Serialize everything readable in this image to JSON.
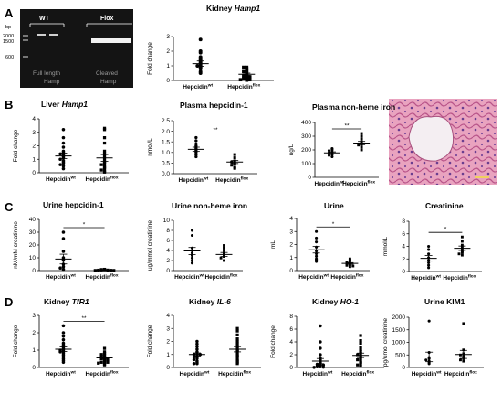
{
  "panels": {
    "A": "A",
    "B": "B",
    "C": "C",
    "D": "D"
  },
  "gel": {
    "bp_label": "bp",
    "markers": [
      "2000",
      "1500",
      "600"
    ],
    "wt_label": "WT",
    "flox_label": "Flox",
    "full_length_line1": "Full length",
    "full_length_line2": "Hamp",
    "cleaved_line1": "Cleaved",
    "cleaved_line2": "Hamp"
  },
  "histology": {
    "description": "kidney tissue section"
  },
  "colors": {
    "data": "#000000",
    "stroke": "#000000"
  },
  "chart_data": [
    {
      "id": "kidney-hamp1",
      "type": "scatter",
      "title_plain": "Kidney ",
      "title_italic": "Hamp1",
      "ylabel": "Fold change",
      "ylim": [
        0,
        3
      ],
      "yticks": [
        "0",
        "1",
        "2",
        "3"
      ],
      "categories": [
        {
          "base": "Hepcidin",
          "sup": "wt"
        },
        {
          "base": "Hepcidin",
          "sup": "flox"
        }
      ],
      "series": [
        {
          "values": [
            2.8,
            2.0,
            1.9,
            1.6,
            1.5,
            1.4,
            1.3,
            1.2,
            1.1,
            1.0,
            1.0,
            0.9,
            0.8,
            0.6,
            0.5
          ],
          "mean": 1.15,
          "sem": 0.18,
          "marker": "circle"
        },
        {
          "values": [
            0.9,
            0.9,
            0.8,
            0.7,
            0.6,
            0.6,
            0.5,
            0.4,
            0.35,
            0.3,
            0.25,
            0.2,
            0.15,
            0.1,
            0.05,
            0.05,
            0.02
          ],
          "mean": 0.42,
          "sem": 0.08,
          "marker": "square"
        }
      ],
      "significance": ""
    },
    {
      "id": "liver-hamp1",
      "type": "scatter",
      "title_plain": "Liver ",
      "title_italic": "Hamp1",
      "ylabel": "Fold change",
      "ylim": [
        0,
        4
      ],
      "yticks": [
        "0",
        "1",
        "2",
        "3",
        "4"
      ],
      "categories": [
        {
          "base": "Hepcidin",
          "sup": "wt"
        },
        {
          "base": "Hepcidin",
          "sup": "flox"
        }
      ],
      "series": [
        {
          "values": [
            3.2,
            2.6,
            2.2,
            1.9,
            1.6,
            1.5,
            1.4,
            1.3,
            1.2,
            1.1,
            1.0,
            0.9,
            0.8,
            0.7,
            0.6,
            0.5,
            0.3
          ],
          "mean": 1.25,
          "sem": 0.2,
          "marker": "circle"
        },
        {
          "values": [
            3.3,
            3.2,
            2.6,
            2.2,
            1.6,
            1.4,
            1.2,
            1.0,
            0.8,
            0.7,
            0.6,
            0.5,
            0.4,
            0.3,
            0.2,
            0.1,
            0.05
          ],
          "mean": 1.1,
          "sem": 0.25,
          "marker": "square"
        }
      ],
      "significance": ""
    },
    {
      "id": "plasma-hepcidin",
      "type": "scatter",
      "title_plain": "Plasma hepcidin-1",
      "title_italic": "",
      "ylabel": "nmol/L",
      "ylim": [
        0,
        2.5
      ],
      "yticks": [
        "0.0",
        "0.5",
        "1.0",
        "1.5",
        "2.0",
        "2.5"
      ],
      "categories": [
        {
          "base": "Hepcidin",
          "sup": "wt"
        },
        {
          "base": "Hepcidin",
          "sup": "flox"
        }
      ],
      "series": [
        {
          "values": [
            1.7,
            1.55,
            1.4,
            1.3,
            1.2,
            1.1,
            1.0,
            0.9,
            0.8
          ],
          "mean": 1.15,
          "sem": 0.1,
          "marker": "circle"
        },
        {
          "values": [
            0.9,
            0.75,
            0.6,
            0.55,
            0.5,
            0.45,
            0.4,
            0.3,
            0.25
          ],
          "mean": 0.55,
          "sem": 0.07,
          "marker": "square"
        }
      ],
      "significance": "**"
    },
    {
      "id": "plasma-iron",
      "type": "scatter",
      "title_plain": "Plasma non-heme iron",
      "title_italic": "",
      "ylabel": "ug/L",
      "ylim": [
        0,
        400
      ],
      "yticks": [
        "0",
        "100",
        "200",
        "300",
        "400"
      ],
      "categories": [
        {
          "base": "Hepcidin",
          "sup": "wt"
        },
        {
          "base": "Hepcidin",
          "sup": "flox"
        }
      ],
      "series": [
        {
          "values": [
            210,
            200,
            195,
            185,
            180,
            170,
            165,
            160,
            150
          ],
          "mean": 178,
          "sem": 8,
          "marker": "circle"
        },
        {
          "values": [
            320,
            300,
            280,
            260,
            250,
            240,
            235,
            220,
            200
          ],
          "mean": 250,
          "sem": 12,
          "marker": "square"
        }
      ],
      "significance": "**"
    },
    {
      "id": "urine-hepcidin",
      "type": "scatter",
      "title_plain": "Urine hepcidin-1",
      "title_italic": "",
      "ylabel": "nM/mM creatinine",
      "ylim": [
        0,
        40
      ],
      "yticks": [
        "0",
        "10",
        "20",
        "30",
        "40"
      ],
      "categories": [
        {
          "base": "Hepcidin",
          "sup": "wt"
        },
        {
          "base": "Hepcidin",
          "sup": "flox"
        }
      ],
      "series": [
        {
          "values": [
            30,
            25,
            15,
            10,
            8,
            5,
            3,
            2,
            1
          ],
          "mean": 9,
          "sem": 3.8,
          "marker": "circle"
        },
        {
          "values": [
            1.0,
            0.8,
            0.6,
            0.5,
            0.4,
            0.3,
            0.2,
            0.1,
            0.1
          ],
          "mean": 0.4,
          "sem": 0.1,
          "marker": "square"
        }
      ],
      "significance": "*"
    },
    {
      "id": "urine-iron",
      "type": "scatter",
      "title_plain": "Urine non-heme iron",
      "title_italic": "",
      "ylabel": "ug/mmol creatinine",
      "ylim": [
        0,
        10
      ],
      "yticks": [
        "0",
        "2",
        "4",
        "6",
        "8",
        "10"
      ],
      "categories": [
        {
          "base": "Hepcidin",
          "sup": "wt"
        },
        {
          "base": "Hepcidin",
          "sup": "flox"
        }
      ],
      "series": [
        {
          "values": [
            8,
            7,
            4.5,
            4,
            3.5,
            3,
            2.5,
            2,
            1.5
          ],
          "mean": 3.9,
          "sem": 0.7,
          "marker": "circle"
        },
        {
          "values": [
            5,
            4.5,
            4,
            3.5,
            3.2,
            3,
            2.8,
            2.5,
            2
          ],
          "mean": 3.2,
          "sem": 0.4,
          "marker": "square"
        }
      ],
      "significance": ""
    },
    {
      "id": "urine-volume",
      "type": "scatter",
      "title_plain": "Urine",
      "title_italic": "",
      "ylabel": "mL",
      "ylim": [
        0,
        4
      ],
      "yticks": [
        "0",
        "1",
        "2",
        "3",
        "4"
      ],
      "categories": [
        {
          "base": "Hepcidin",
          "sup": "wt"
        },
        {
          "base": "Hepcidin",
          "sup": "flox"
        }
      ],
      "series": [
        {
          "values": [
            3.0,
            2.5,
            2.2,
            1.8,
            1.5,
            1.3,
            1.1,
            0.9,
            0.8,
            0.7
          ],
          "mean": 1.6,
          "sem": 0.25,
          "marker": "circle"
        },
        {
          "values": [
            0.9,
            0.8,
            0.7,
            0.6,
            0.55,
            0.5,
            0.45,
            0.4,
            0.35,
            0.3
          ],
          "mean": 0.55,
          "sem": 0.06,
          "marker": "square"
        }
      ],
      "significance": "*"
    },
    {
      "id": "creatinine",
      "type": "scatter",
      "title_plain": "Creatinine",
      "title_italic": "",
      "ylabel": "mmol/L",
      "ylim": [
        0,
        8
      ],
      "yticks": [
        "0",
        "2",
        "4",
        "6",
        "8"
      ],
      "categories": [
        {
          "base": "Hepcidin",
          "sup": "wt"
        },
        {
          "base": "Hepcidin",
          "sup": "flox"
        }
      ],
      "series": [
        {
          "values": [
            4.0,
            3.5,
            2.8,
            2.2,
            1.8,
            1.4,
            1.0,
            0.6
          ],
          "mean": 2.1,
          "sem": 0.45,
          "marker": "circle"
        },
        {
          "values": [
            5.5,
            4.8,
            4.2,
            3.9,
            3.5,
            3.2,
            3.0,
            2.8,
            2.6
          ],
          "mean": 3.7,
          "sem": 0.35,
          "marker": "square"
        }
      ],
      "significance": "*"
    },
    {
      "id": "kidney-tfr1",
      "type": "scatter",
      "title_plain": "Kidney ",
      "title_italic": "TfR1",
      "ylabel": "Fold change",
      "ylim": [
        0,
        3
      ],
      "yticks": [
        "0",
        "1",
        "2",
        "3"
      ],
      "categories": [
        {
          "base": "Hepcidin",
          "sup": "wt"
        },
        {
          "base": "Hepcidin",
          "sup": "flox"
        }
      ],
      "series": [
        {
          "values": [
            2.4,
            2.0,
            1.8,
            1.6,
            1.4,
            1.3,
            1.2,
            1.1,
            1.0,
            1.0,
            0.9,
            0.9,
            0.8,
            0.7,
            0.6,
            0.5,
            0.4,
            0.3
          ],
          "mean": 1.05,
          "sem": 0.13,
          "marker": "circle"
        },
        {
          "values": [
            1.1,
            0.9,
            0.8,
            0.75,
            0.7,
            0.65,
            0.6,
            0.55,
            0.5,
            0.5,
            0.45,
            0.4,
            0.35,
            0.3,
            0.3,
            0.25,
            0.2,
            0.15
          ],
          "mean": 0.55,
          "sem": 0.06,
          "marker": "square"
        }
      ],
      "significance": "**"
    },
    {
      "id": "kidney-il6",
      "type": "scatter",
      "title_plain": "Kidney ",
      "title_italic": "IL-6",
      "ylabel": "Fold change",
      "ylim": [
        0,
        4
      ],
      "yticks": [
        "0",
        "1",
        "2",
        "3",
        "4"
      ],
      "categories": [
        {
          "base": "Hepcidin",
          "sup": "wt"
        },
        {
          "base": "Hepcidin",
          "sup": "flox"
        }
      ],
      "series": [
        {
          "values": [
            2.0,
            1.8,
            1.6,
            1.4,
            1.2,
            1.1,
            1.0,
            1.0,
            0.9,
            0.8,
            0.8,
            0.7,
            0.6,
            0.5,
            0.4,
            0.3,
            0.3
          ],
          "mean": 1.0,
          "sem": 0.12,
          "marker": "circle"
        },
        {
          "values": [
            3.0,
            2.8,
            2.5,
            2.2,
            2.0,
            1.8,
            1.6,
            1.4,
            1.3,
            1.2,
            1.0,
            0.9,
            0.8,
            0.6,
            0.5,
            0.4,
            0.3
          ],
          "mean": 1.4,
          "sem": 0.2,
          "marker": "square"
        }
      ],
      "significance": ""
    },
    {
      "id": "kidney-ho1",
      "type": "scatter",
      "title_plain": "Kidney ",
      "title_italic": "HO-1",
      "ylabel": "Fold change",
      "ylim": [
        0,
        8
      ],
      "yticks": [
        "0",
        "2",
        "4",
        "6",
        "8"
      ],
      "categories": [
        {
          "base": "Hepcidin",
          "sup": "wt"
        },
        {
          "base": "Hepcidin",
          "sup": "flox"
        }
      ],
      "series": [
        {
          "values": [
            6.5,
            4.0,
            3.0,
            2.0,
            1.5,
            1.2,
            1.0,
            0.8,
            0.6,
            0.5,
            0.4,
            0.3,
            0.2,
            0.1,
            0.1,
            0.05,
            0.02
          ],
          "mean": 1.0,
          "sem": 0.4,
          "marker": "circle"
        },
        {
          "values": [
            5.0,
            4.2,
            3.8,
            3.2,
            2.8,
            2.5,
            2.2,
            2.0,
            1.8,
            1.6,
            1.4,
            1.2,
            1.0,
            0.8,
            0.6,
            0.4,
            0.2
          ],
          "mean": 1.9,
          "sem": 0.35,
          "marker": "square"
        }
      ],
      "significance": ""
    },
    {
      "id": "urine-kim1",
      "type": "scatter",
      "title_plain": "Urine KIM1",
      "title_italic": "",
      "ylabel": "pg/umol creatinine",
      "ylim": [
        0,
        2000
      ],
      "yticks": [
        "0",
        "500",
        "1000",
        "1500",
        "2000"
      ],
      "categories": [
        {
          "base": "Hepcidin",
          "sup": "wt"
        },
        {
          "base": "Hepcidin",
          "sup": "flox"
        }
      ],
      "series": [
        {
          "values": [
            1850,
            600,
            400,
            350,
            300,
            250,
            200,
            150
          ],
          "mean": 420,
          "sem": 190,
          "marker": "circle"
        },
        {
          "values": [
            1750,
            700,
            550,
            500,
            450,
            400,
            350,
            300,
            250
          ],
          "mean": 520,
          "sem": 160,
          "marker": "square"
        }
      ],
      "significance": ""
    }
  ]
}
